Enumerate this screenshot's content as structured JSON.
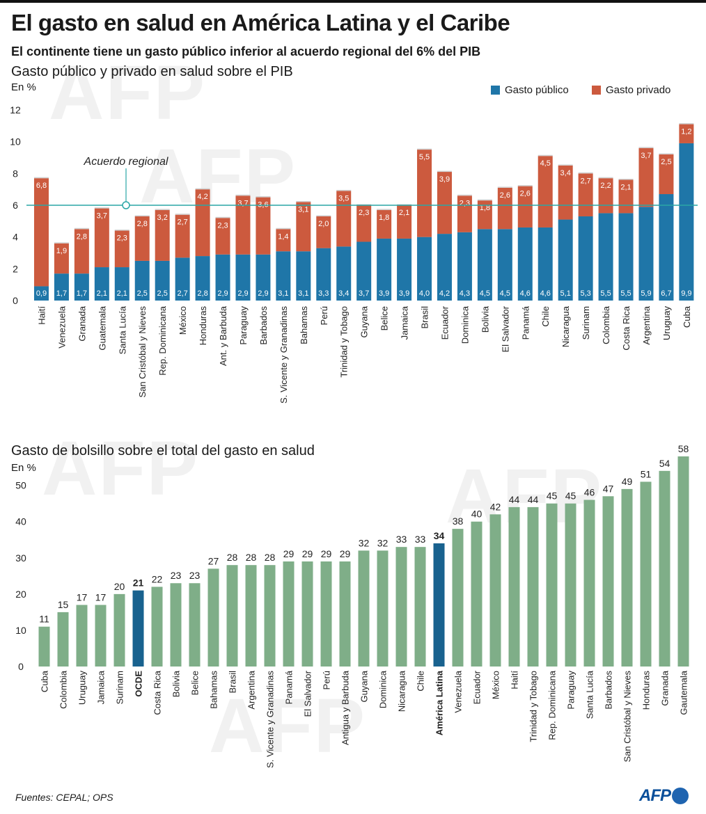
{
  "header": {
    "title": "El gasto en salud en América Latina y el Caribe",
    "subtitle": "El continente tiene un gasto público inferior al acuerdo regional del 6% del PIB"
  },
  "colors": {
    "public": "#1f76a8",
    "private": "#cc5a3e",
    "pocket": "#7fae88",
    "pocket_highlight": "#19628f",
    "refline": "#2aa6a6"
  },
  "watermark": "AFP",
  "chart_data": [
    {
      "type": "bar",
      "stacked": true,
      "title": "Gasto público y privado en salud sobre el PIB",
      "ylabel": "En %",
      "ylim": [
        0,
        12
      ],
      "yticks": [
        0,
        2,
        4,
        6,
        8,
        10,
        12
      ],
      "legend": "top-right",
      "reference_line": {
        "value": 6,
        "label": "Acuerdo regional"
      },
      "categories": [
        "Haití",
        "Venezuela",
        "Granada",
        "Guatemala",
        "Santa Lucía",
        "San Cristóbal y Nieves",
        "Rep. Dominicana",
        "México",
        "Honduras",
        "Ant. y Barbuda",
        "Paraguay",
        "Barbados",
        "S. Vicente y Granadinas",
        "Bahamas",
        "Perú",
        "Trinidad y Tobago",
        "Guyana",
        "Belice",
        "Jamaica",
        "Brasil",
        "Ecuador",
        "Dominica",
        "Bolivia",
        "El Salvador",
        "Panamá",
        "Chile",
        "Nicaragua",
        "Surinam",
        "Colombia",
        "Costa Rica",
        "Argentina",
        "Uruguay",
        "Cuba"
      ],
      "series": [
        {
          "name": "Gasto público",
          "values": [
            0.9,
            1.7,
            1.7,
            2.1,
            2.1,
            2.5,
            2.5,
            2.7,
            2.8,
            2.9,
            2.9,
            2.9,
            3.1,
            3.1,
            3.3,
            3.4,
            3.7,
            3.9,
            3.9,
            4.0,
            4.2,
            4.3,
            4.5,
            4.5,
            4.6,
            4.6,
            5.1,
            5.3,
            5.5,
            5.5,
            5.9,
            6.7,
            9.9
          ]
        },
        {
          "name": "Gasto privado",
          "values": [
            6.8,
            1.9,
            2.8,
            3.7,
            2.3,
            2.8,
            3.2,
            2.7,
            4.2,
            2.3,
            3.7,
            3.6,
            1.4,
            3.1,
            2.0,
            3.5,
            2.3,
            1.8,
            2.1,
            5.5,
            3.9,
            2.3,
            1.8,
            2.6,
            2.6,
            4.5,
            3.4,
            2.7,
            2.2,
            2.1,
            3.7,
            2.5,
            1.2
          ]
        }
      ]
    },
    {
      "type": "bar",
      "title": "Gasto de bolsillo sobre el total del gasto en salud",
      "ylabel": "En %",
      "ylim": [
        0,
        58
      ],
      "yticks": [
        0,
        10,
        20,
        30,
        40,
        50
      ],
      "categories": [
        "Cuba",
        "Colombia",
        "Uruguay",
        "Jamaica",
        "Surinam",
        "OCDE",
        "Costa Rica",
        "Bolivia",
        "Belice",
        "Bahamas",
        "Brasil",
        "Argentina",
        "S. Vicente y Granadinas",
        "Panamá",
        "El Salvador",
        "Perú",
        "Antigua y Barbuda",
        "Guyana",
        "Dominica",
        "Nicaragua",
        "Chile",
        "América Latina",
        "Venezuela",
        "Ecuador",
        "México",
        "Haití",
        "Trinidad y Tobago",
        "Rep. Dominicana",
        "Paraguay",
        "Santa Lucía",
        "Barbados",
        "San Cristóbal y Nieves",
        "Honduras",
        "Granada",
        "Gautemala"
      ],
      "values": [
        11,
        15,
        17,
        17,
        20,
        21,
        22,
        23,
        23,
        27,
        28,
        28,
        28,
        29,
        29,
        29,
        29,
        32,
        32,
        33,
        33,
        34,
        38,
        40,
        42,
        44,
        44,
        45,
        45,
        46,
        47,
        49,
        51,
        54,
        58
      ],
      "highlight": [
        "OCDE",
        "América Latina"
      ]
    }
  ],
  "footer": {
    "sources": "Fuentes: CEPAL; OPS",
    "logo": "AFP"
  }
}
